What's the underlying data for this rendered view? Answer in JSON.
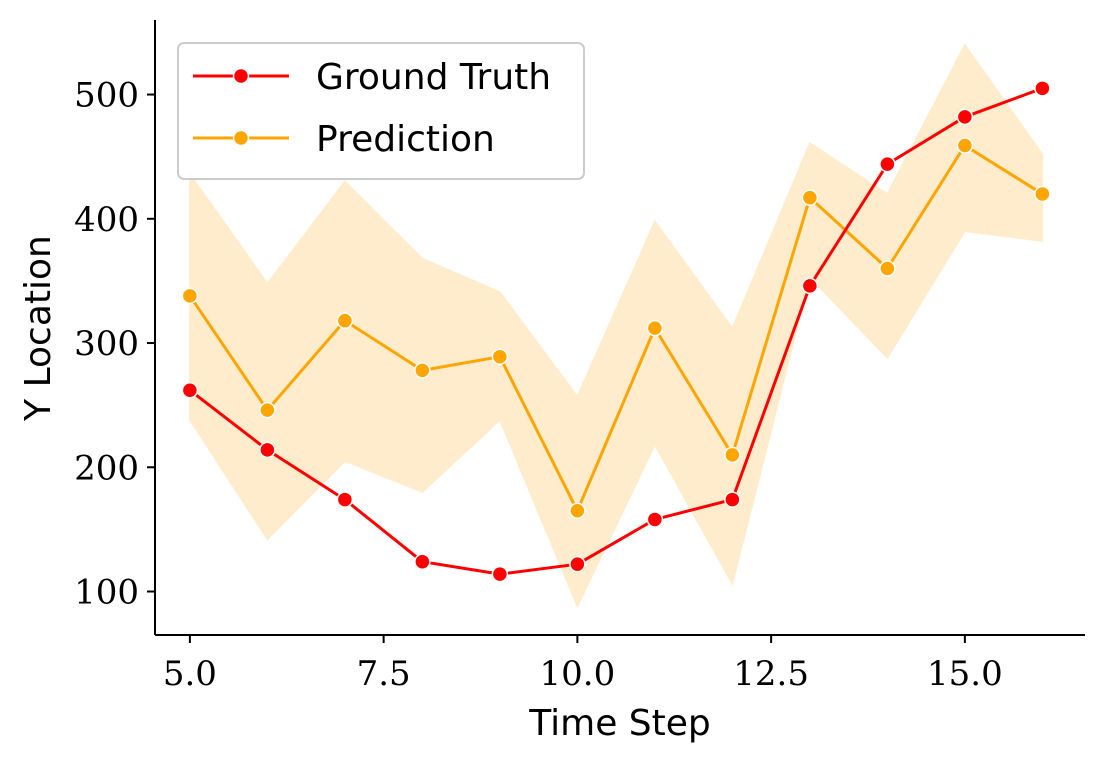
{
  "chart_data": {
    "type": "line",
    "xlabel": "Time Step",
    "ylabel": "Y Location",
    "xlim": [
      4.55,
      16.55
    ],
    "ylim": [
      65,
      560
    ],
    "xticks": [
      5.0,
      7.5,
      10.0,
      12.5,
      15.0
    ],
    "xtick_labels": [
      "5.0",
      "7.5",
      "10.0",
      "12.5",
      "15.0"
    ],
    "yticks": [
      100,
      200,
      300,
      400,
      500
    ],
    "ytick_labels": [
      "100",
      "200",
      "300",
      "400",
      "500"
    ],
    "grid": false,
    "legend_position": "top-left",
    "x": [
      5,
      6,
      7,
      8,
      9,
      10,
      11,
      12,
      13,
      14,
      15,
      16
    ],
    "series": [
      {
        "name": "Ground Truth",
        "color": "#ff0000",
        "values": [
          262,
          214,
          174,
          124,
          114,
          122,
          158,
          174,
          346,
          444,
          482,
          505
        ]
      },
      {
        "name": "Prediction",
        "color": "#ffa500",
        "values": [
          338,
          246,
          318,
          278,
          289,
          165,
          312,
          210,
          417,
          360,
          459,
          420
        ],
        "band_upper": [
          436,
          348,
          430,
          368,
          341,
          257,
          398,
          312,
          461,
          420,
          540,
          452
        ],
        "band_lower": [
          238,
          142,
          205,
          180,
          238,
          88,
          218,
          106,
          353,
          288,
          390,
          382
        ],
        "band_color": "#ffeccc"
      }
    ]
  }
}
